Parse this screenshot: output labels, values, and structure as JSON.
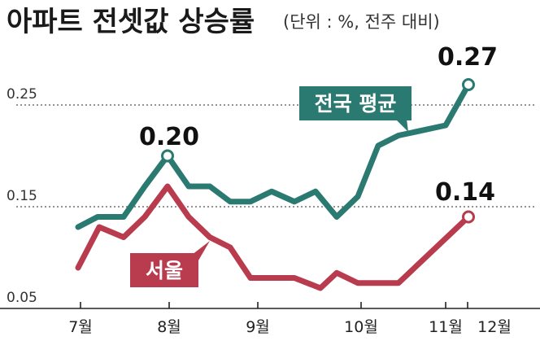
{
  "header": {
    "title": "아파트 전셋값 상승률",
    "subtitle": "(단위 : %, 전주 대비)"
  },
  "chart_data": {
    "type": "line",
    "title": "아파트 전셋값 상승률",
    "subtitle": "(단위 : %, 전주 대비)",
    "ylim": [
      0.05,
      0.3
    ],
    "yticks": [
      "0.25",
      "0.15",
      "0.05"
    ],
    "yticks_values": [
      0.25,
      0.15,
      0.05
    ],
    "x_tick_labels": [
      "7월",
      "8월",
      "9월",
      "10월",
      "11월",
      "12월"
    ],
    "grid": "dashed-horizontal",
    "series": [
      {
        "name": "전국 평균",
        "color": "#2b7a72",
        "values": [
          0.13,
          0.14,
          0.14,
          0.17,
          0.2,
          0.17,
          0.17,
          0.155,
          0.155,
          0.165,
          0.155,
          0.165,
          0.14,
          0.16,
          0.21,
          0.22,
          0.23,
          0.27
        ],
        "last_label": "0.27",
        "peak_label": "0.20"
      },
      {
        "name": "서울",
        "color": "#b83c4e",
        "values": [
          0.09,
          0.13,
          0.12,
          0.14,
          0.17,
          0.14,
          0.12,
          0.11,
          0.08,
          0.08,
          0.08,
          0.07,
          0.085,
          0.075,
          0.075,
          0.075,
          0.14
        ],
        "last_label": "0.14"
      }
    ]
  }
}
